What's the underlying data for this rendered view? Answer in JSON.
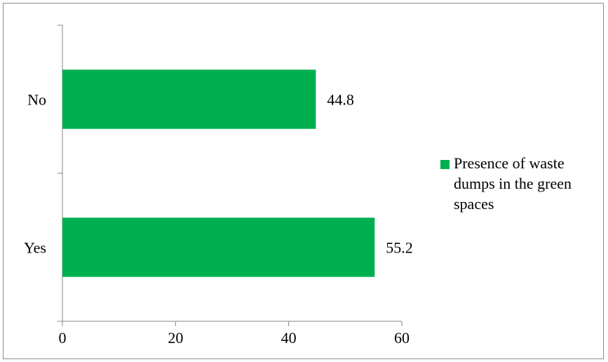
{
  "chart_data": {
    "type": "bar",
    "orientation": "horizontal",
    "categories": [
      "No",
      "Yes"
    ],
    "series": [
      {
        "name": "Presence of waste dumps in the green spaces",
        "values": [
          44.8,
          55.2
        ],
        "color": "#00B050"
      }
    ],
    "data_labels": [
      "44.8",
      "55.2"
    ],
    "x_ticks": [
      0,
      20,
      40,
      60
    ],
    "xlim": [
      0,
      60
    ],
    "title": "",
    "xlabel": "",
    "ylabel": "",
    "grid": false,
    "legend": "right"
  }
}
